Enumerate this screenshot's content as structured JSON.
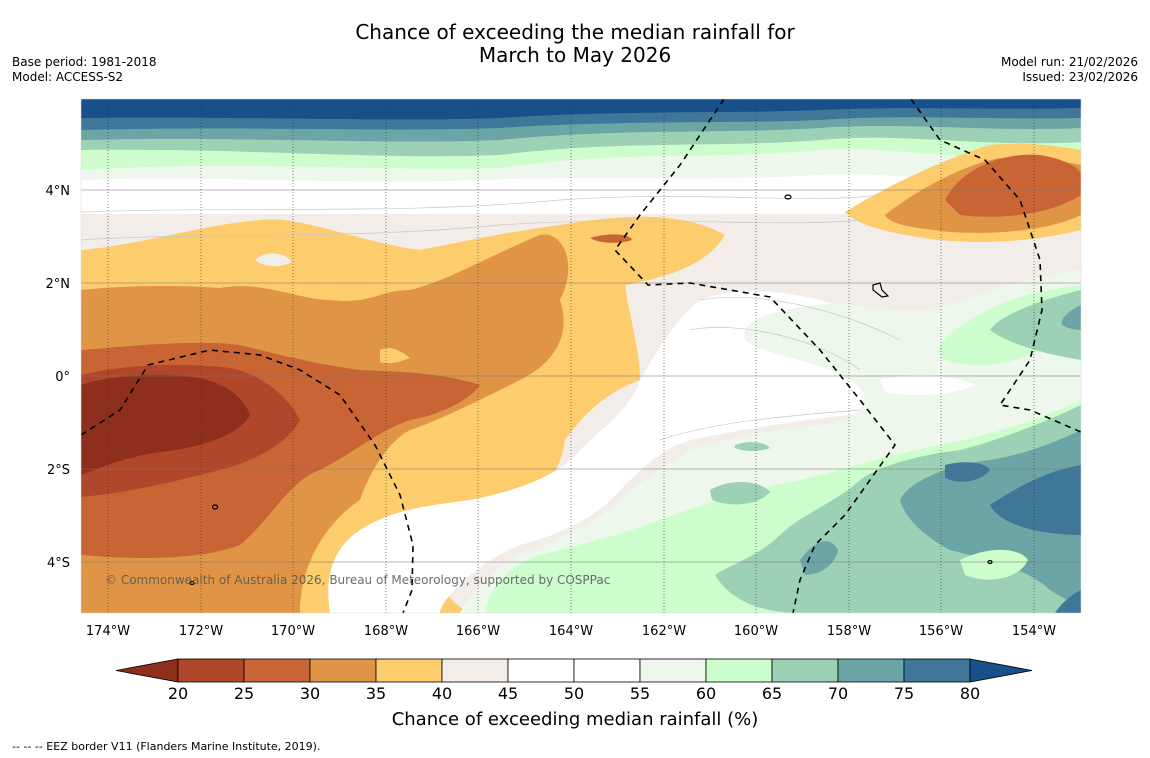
{
  "title": {
    "line1": "Chance of exceeding the median rainfall for",
    "line2": "March to May 2026"
  },
  "meta_left": {
    "base_period": "Base period: 1981-2018",
    "model": "Model: ACCESS-S2"
  },
  "meta_right": {
    "model_run": "Model run: 21/02/2026",
    "issued": "Issued: 23/02/2026"
  },
  "map": {
    "lat_labels": [
      "4°N",
      "2°N",
      "0°",
      "2°S",
      "4°S"
    ],
    "lon_labels": [
      "174°W",
      "172°W",
      "170°W",
      "168°W",
      "166°W",
      "164°W",
      "162°W",
      "160°W",
      "158°W",
      "156°W",
      "154°W"
    ],
    "copyright": "© Commonwealth of Australia 2026, Bureau of Meteorology, supported by COSPPac"
  },
  "colorbar": {
    "ticks": [
      "20",
      "25",
      "30",
      "35",
      "40",
      "45",
      "50",
      "55",
      "60",
      "65",
      "70",
      "75",
      "80"
    ],
    "colors": [
      "#8e2f1d",
      "#b1472a",
      "#c96435",
      "#e09446",
      "#fdcc6c",
      "#f2ede8",
      "#ffffff",
      "#ffffff",
      "#eef7ec",
      "#cdfccd",
      "#9cd1b6",
      "#6ba5a6",
      "#3f7799",
      "#17508a"
    ],
    "title": "Chance of exceeding median rainfall (%)"
  },
  "footnote": "--  --  -- EEZ border V11 (Flanders Marine Institute, 2019)."
}
